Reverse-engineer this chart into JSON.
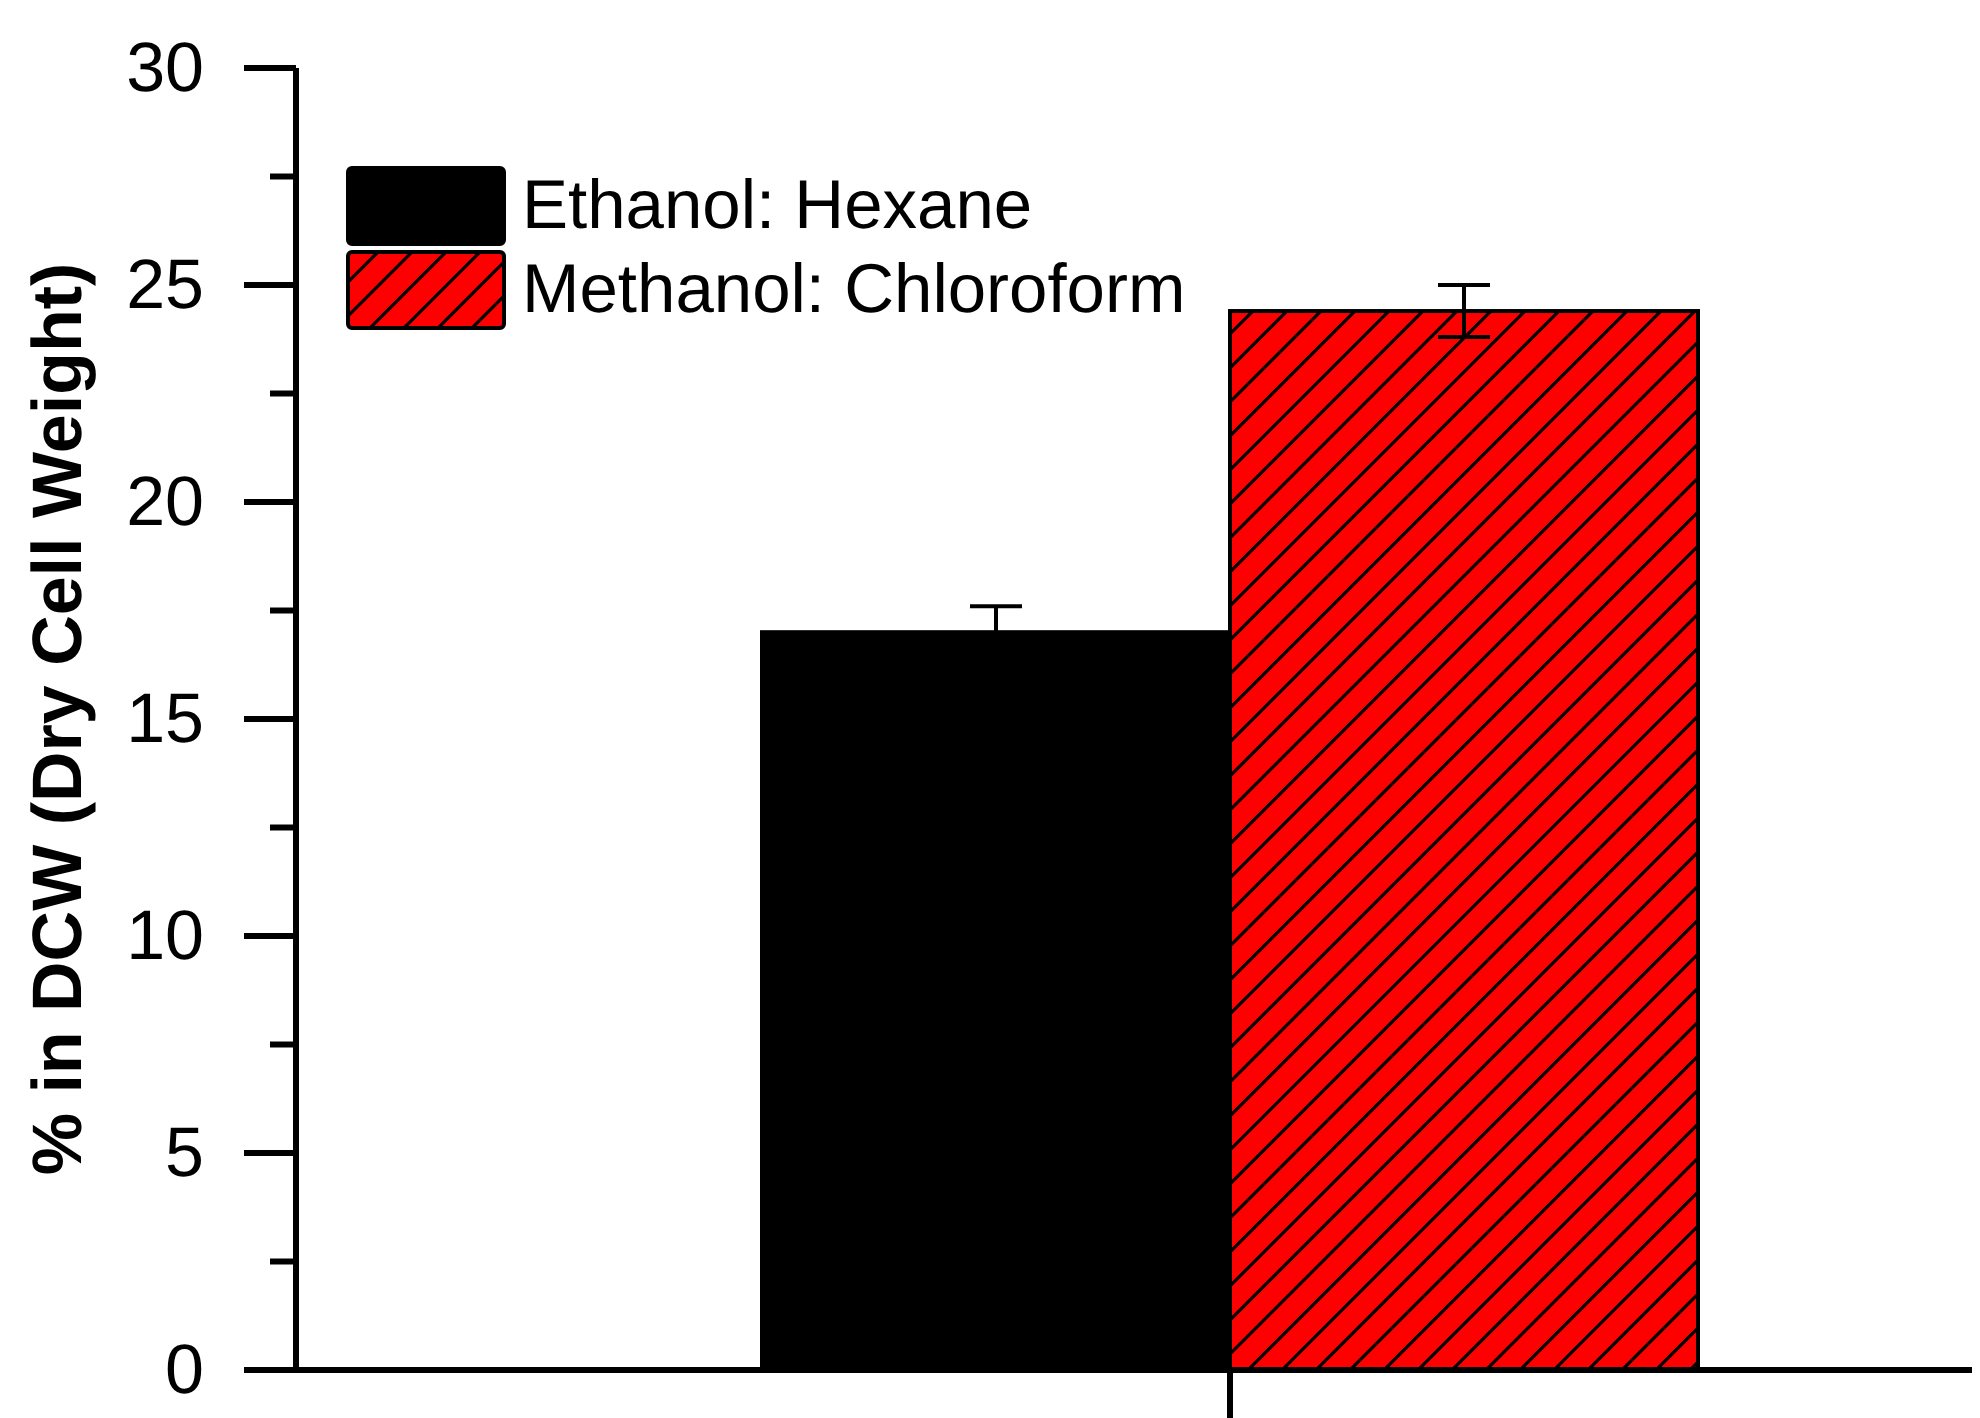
{
  "chart_data": {
    "type": "bar",
    "ylabel": "% in DCW (Dry Cell Weight)",
    "categories": [
      null
    ],
    "ylim": [
      0,
      30
    ],
    "yticks": [
      0,
      {
        "value": 2.5,
        "label": null
      },
      5,
      {
        "value": 7.5,
        "label": null
      },
      10,
      {
        "value": 12.5,
        "label": null
      },
      15,
      {
        "value": 17.5,
        "label": null
      },
      20,
      {
        "value": 22.5,
        "label": null
      },
      25,
      {
        "value": 27.5,
        "label": null
      },
      30
    ],
    "legend": "top left",
    "series": [
      {
        "name": "Ethanol: Hexane",
        "color": "#000000",
        "values": [
          17.0
        ],
        "errors": [
          0.6
        ]
      },
      {
        "name": "Methanol: Chloroform",
        "color": "#ff0000",
        "values": [
          24.4
        ],
        "errors": [
          0.6
        ]
      }
    ]
  }
}
